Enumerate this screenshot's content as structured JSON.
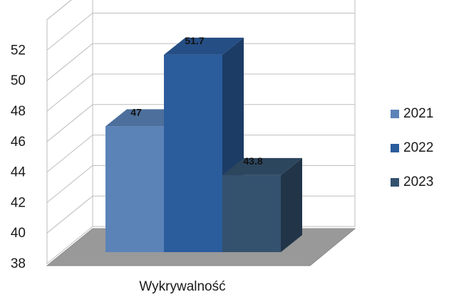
{
  "chart_data": {
    "type": "bar",
    "categories": [
      "Wykrywalność"
    ],
    "series": [
      {
        "name": "2021",
        "values": [
          47
        ],
        "color": "#5b83b8"
      },
      {
        "name": "2022",
        "values": [
          51.7
        ],
        "color": "#2b5c9c"
      },
      {
        "name": "2023",
        "values": [
          43.8
        ],
        "color": "#34526e"
      }
    ],
    "data_labels": [
      "47",
      "51.7",
      "43.8"
    ],
    "y_ticks": [
      "38",
      "40",
      "42",
      "44",
      "46",
      "48",
      "50",
      "52"
    ],
    "ylim": [
      38,
      52
    ],
    "y_axis_max": 54,
    "title": "",
    "xlabel": "",
    "ylabel": "",
    "grid": true,
    "style": "3d",
    "legend_position": "right"
  }
}
